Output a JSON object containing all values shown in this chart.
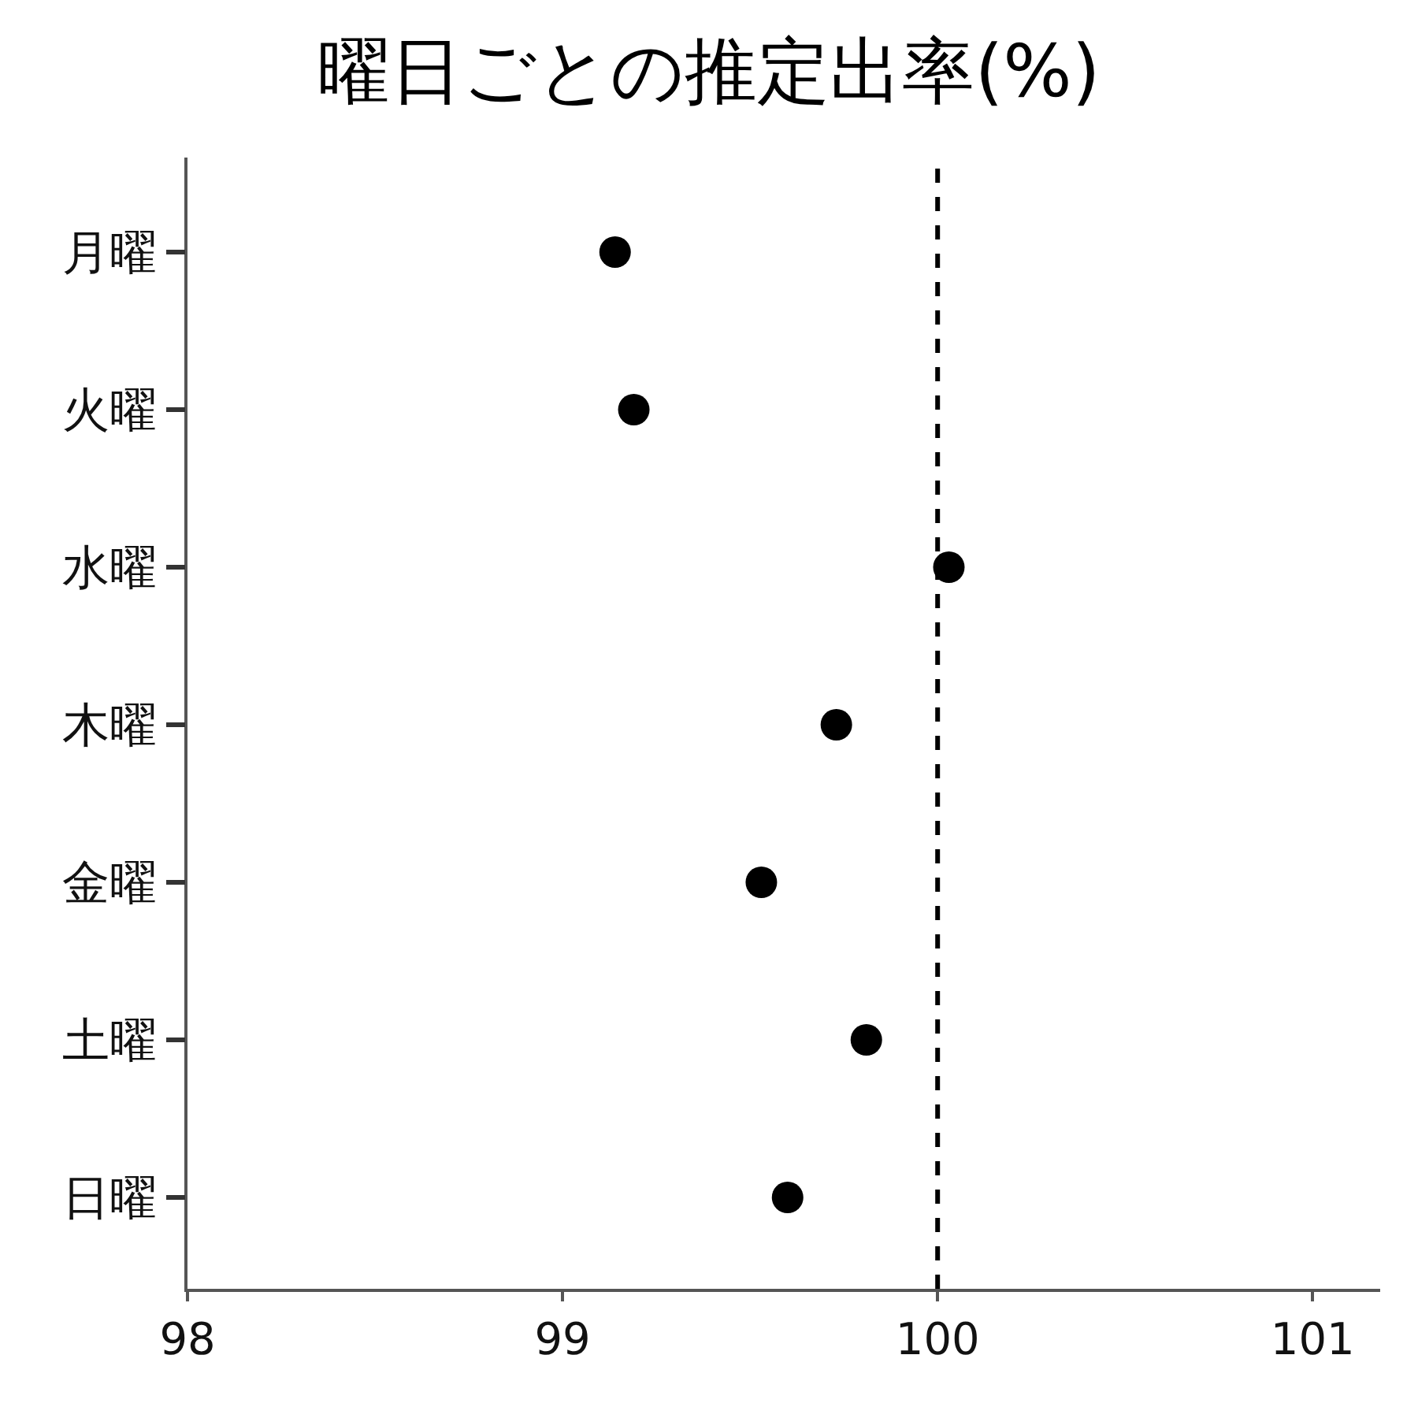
{
  "chart_data": {
    "type": "scatter",
    "orientation": "horizontal",
    "title": "曜日ごとの推定出率(%)",
    "categories": [
      "月曜",
      "火曜",
      "水曜",
      "木曜",
      "金曜",
      "土曜",
      "日曜"
    ],
    "series": [
      {
        "color": "#000000",
        "values": [
          99.14,
          99.19,
          100.03,
          99.73,
          99.53,
          99.81,
          99.6
        ]
      }
    ],
    "xlim": [
      98,
      101.18
    ],
    "xticks": [
      98,
      99,
      100,
      101
    ],
    "ref_lines": [
      {
        "axis": "x",
        "value": 100,
        "color": "#000000",
        "line_style": "dashed"
      }
    ],
    "marker": "circle"
  }
}
